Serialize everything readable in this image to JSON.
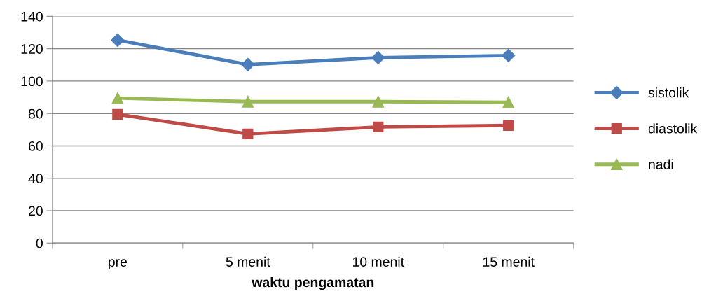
{
  "chart_data": {
    "type": "line",
    "xlabel": "waktu pengamatan",
    "categories": [
      "pre",
      "5 menit",
      "10 menit",
      "15 menit"
    ],
    "series": [
      {
        "name": "sistolik",
        "color": "#4a7ebb",
        "marker": "diamond",
        "values": [
          125.3,
          110.2,
          114.5,
          115.8
        ]
      },
      {
        "name": "diastolik",
        "color": "#be4b48",
        "marker": "square",
        "values": [
          79.5,
          67.4,
          71.7,
          72.6
        ]
      },
      {
        "name": "nadi",
        "color": "#98b954",
        "marker": "triangle",
        "values": [
          89.5,
          87.3,
          87.3,
          86.9
        ]
      }
    ],
    "ylim": [
      0,
      140
    ],
    "yticks": [
      0,
      20,
      40,
      60,
      80,
      100,
      120,
      140
    ],
    "grid": "y",
    "legend": "right",
    "line_style": "solid"
  }
}
